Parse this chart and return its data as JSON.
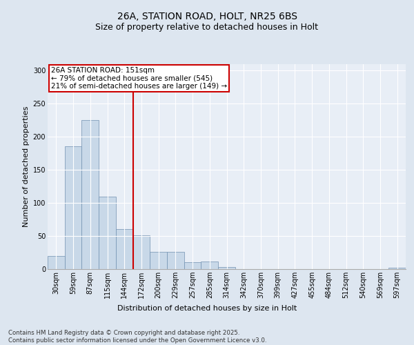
{
  "title_line1": "26A, STATION ROAD, HOLT, NR25 6BS",
  "title_line2": "Size of property relative to detached houses in Holt",
  "xlabel": "Distribution of detached houses by size in Holt",
  "ylabel": "Number of detached properties",
  "categories": [
    "30sqm",
    "59sqm",
    "87sqm",
    "115sqm",
    "144sqm",
    "172sqm",
    "200sqm",
    "229sqm",
    "257sqm",
    "285sqm",
    "314sqm",
    "342sqm",
    "370sqm",
    "399sqm",
    "427sqm",
    "455sqm",
    "484sqm",
    "512sqm",
    "540sqm",
    "569sqm",
    "597sqm"
  ],
  "values": [
    20,
    185,
    225,
    109,
    60,
    51,
    26,
    26,
    10,
    11,
    3,
    0,
    0,
    0,
    0,
    0,
    0,
    0,
    0,
    0,
    2
  ],
  "bar_color": "#c8d8e8",
  "bar_edge_color": "#7090b0",
  "vline_x": 4.5,
  "vline_color": "#cc0000",
  "annotation_text": "26A STATION ROAD: 151sqm\n← 79% of detached houses are smaller (545)\n21% of semi-detached houses are larger (149) →",
  "annotation_box_color": "#ffffff",
  "annotation_box_edge_color": "#cc0000",
  "bg_color": "#dde6f0",
  "plot_bg_color": "#e8eef6",
  "grid_color": "#ffffff",
  "ylim": [
    0,
    310
  ],
  "yticks": [
    0,
    50,
    100,
    150,
    200,
    250,
    300
  ],
  "footnote": "Contains HM Land Registry data © Crown copyright and database right 2025.\nContains public sector information licensed under the Open Government Licence v3.0.",
  "title_fontsize": 10,
  "subtitle_fontsize": 9,
  "tick_fontsize": 7,
  "axis_label_fontsize": 8,
  "annotation_fontsize": 7.5,
  "ylabel_fontsize": 8
}
